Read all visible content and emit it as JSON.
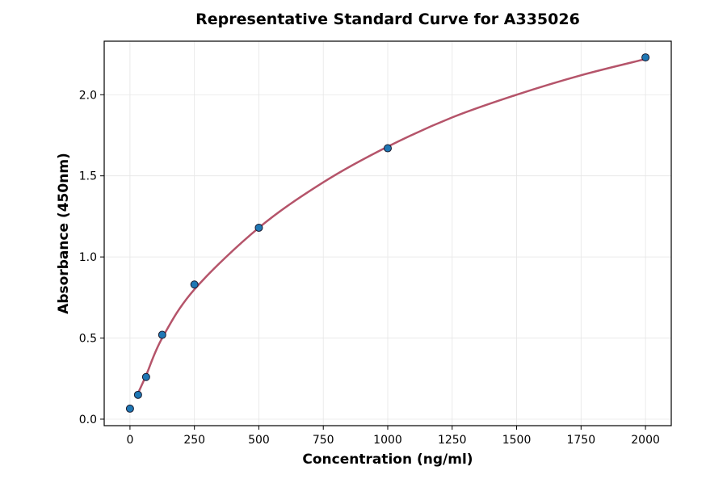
{
  "chart_data": {
    "type": "scatter",
    "title": "Representative Standard Curve for A335026",
    "xlabel": "Concentration (ng/ml)",
    "ylabel": "Absorbance (450nm)",
    "xlim": [
      -100,
      2100
    ],
    "ylim": [
      -0.04,
      2.33
    ],
    "xticks": [
      0,
      250,
      500,
      750,
      1000,
      1250,
      1500,
      1750,
      2000
    ],
    "yticks": [
      0.0,
      0.5,
      1.0,
      1.5,
      2.0
    ],
    "ytick_labels": [
      "0.0",
      "0.5",
      "1.0",
      "1.5",
      "2.0"
    ],
    "grid": true,
    "points": {
      "x": [
        0,
        31.25,
        62.5,
        125,
        250,
        500,
        1000,
        2000
      ],
      "y": [
        0.065,
        0.15,
        0.26,
        0.52,
        0.83,
        1.18,
        1.67,
        2.23
      ],
      "color": "#1f77b4"
    },
    "fit_curve": {
      "x": [
        31.25,
        62.5,
        125,
        250,
        500,
        750,
        1000,
        1250,
        1500,
        1750,
        2000
      ],
      "y": [
        0.16,
        0.27,
        0.5,
        0.8,
        1.18,
        1.46,
        1.68,
        1.86,
        2.0,
        2.12,
        2.22
      ],
      "color": "#b5546a"
    }
  }
}
